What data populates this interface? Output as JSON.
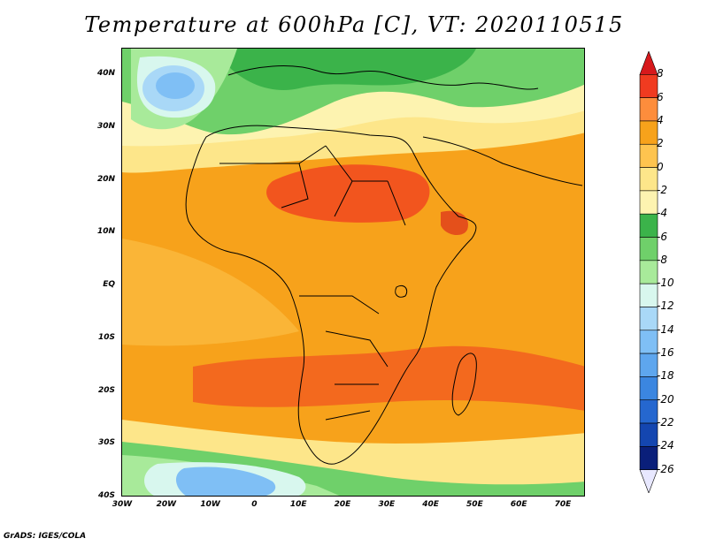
{
  "title": "Temperature at 600hPa [C], VT: 2020110515",
  "credit": "GrADS: IGES/COLA",
  "map": {
    "lat_labels": [
      "40N",
      "30N",
      "20N",
      "10N",
      "EQ",
      "10S",
      "20S",
      "30S",
      "40S"
    ],
    "lon_labels": [
      "30W",
      "20W",
      "10W",
      "0",
      "10E",
      "20E",
      "30E",
      "40E",
      "50E",
      "60E",
      "70E"
    ]
  },
  "colorbar": {
    "labels": [
      "8",
      "6",
      "4",
      "2",
      "0",
      "-2",
      "-4",
      "-6",
      "-8",
      "-10",
      "-12",
      "-14",
      "-16",
      "-18",
      "-20",
      "-22",
      "-24",
      "-26"
    ],
    "colors": [
      "#d7191c",
      "#f03b20",
      "#fd8d3c",
      "#f7a21b",
      "#fec44f",
      "#fde68a",
      "#fdf3b0",
      "#3bb34a",
      "#6fd06a",
      "#a8ea9a",
      "#d8f7ee",
      "#a9d8f7",
      "#7fbff5",
      "#5ea6ee",
      "#3b86e0",
      "#2567cf",
      "#1446b0",
      "#0a1f7a",
      "#e8e8ff"
    ]
  }
}
